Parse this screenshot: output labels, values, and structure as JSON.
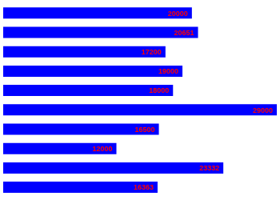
{
  "chart_data": {
    "type": "bar",
    "orientation": "horizontal",
    "categories": [
      null,
      null,
      null,
      null,
      null,
      null,
      null,
      null,
      null,
      null
    ],
    "values": [
      20000,
      20651,
      17200,
      19000,
      18000,
      29000,
      16500,
      12000,
      23332,
      16363
    ],
    "color": "#0000FF",
    "xlim": [
      0,
      29000
    ],
    "data_labels": true,
    "tick_labels": false
  }
}
